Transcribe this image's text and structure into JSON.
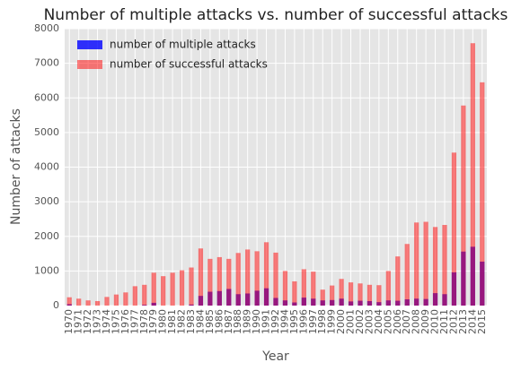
{
  "chart_data": {
    "type": "bar",
    "overlap": true,
    "title": "Number of multiple attacks vs. number of successful attacks",
    "xlabel": "Year",
    "ylabel": "Number of attacks",
    "categories": [
      "1970",
      "1971",
      "1972",
      "1973",
      "1974",
      "1975",
      "1976",
      "1977",
      "1978",
      "1979",
      "1980",
      "1981",
      "1982",
      "1983",
      "1984",
      "1985",
      "1986",
      "1987",
      "1988",
      "1989",
      "1990",
      "1991",
      "1992",
      "1994",
      "1995",
      "1996",
      "1997",
      "1998",
      "1999",
      "2000",
      "2001",
      "2002",
      "2003",
      "2004",
      "2005",
      "2006",
      "2007",
      "2008",
      "2009",
      "2010",
      "2011",
      "2012",
      "2013",
      "2014",
      "2015"
    ],
    "series": [
      {
        "name": "number of multiple attacks",
        "color": "#0000ff",
        "opacity": 0.8,
        "values": [
          40,
          0,
          0,
          0,
          0,
          0,
          0,
          0,
          20,
          80,
          0,
          0,
          0,
          30,
          280,
          400,
          420,
          480,
          330,
          350,
          430,
          500,
          220,
          150,
          90,
          230,
          200,
          150,
          160,
          200,
          120,
          140,
          130,
          100,
          150,
          140,
          180,
          200,
          190,
          360,
          330,
          960,
          1560,
          1700,
          1270
        ]
      },
      {
        "name": "number of successful attacks",
        "color": "#ff0000",
        "opacity": 0.5,
        "values": [
          240,
          200,
          150,
          130,
          250,
          320,
          380,
          560,
          600,
          950,
          850,
          950,
          1020,
          1100,
          1650,
          1350,
          1400,
          1350,
          1520,
          1620,
          1570,
          1830,
          1530,
          1000,
          700,
          1050,
          980,
          460,
          580,
          770,
          670,
          640,
          600,
          590,
          1000,
          1420,
          1780,
          2400,
          2420,
          2270,
          2330,
          4420,
          5780,
          7580,
          6450
        ]
      }
    ],
    "ylim": [
      0,
      8000
    ],
    "yticks": [
      0,
      1000,
      2000,
      3000,
      4000,
      5000,
      6000,
      7000,
      8000
    ],
    "grid": true,
    "legend": "upper left"
  }
}
